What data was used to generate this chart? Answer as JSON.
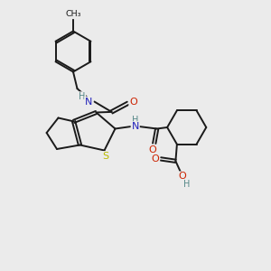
{
  "bg_color": "#ebebeb",
  "bond_color": "#1a1a1a",
  "bond_width": 1.4,
  "atom_colors": {
    "N": "#2222bb",
    "O": "#cc2200",
    "S": "#bbbb00",
    "H": "#558888",
    "C": "#1a1a1a"
  },
  "figsize": [
    3.0,
    3.0
  ],
  "dpi": 100
}
